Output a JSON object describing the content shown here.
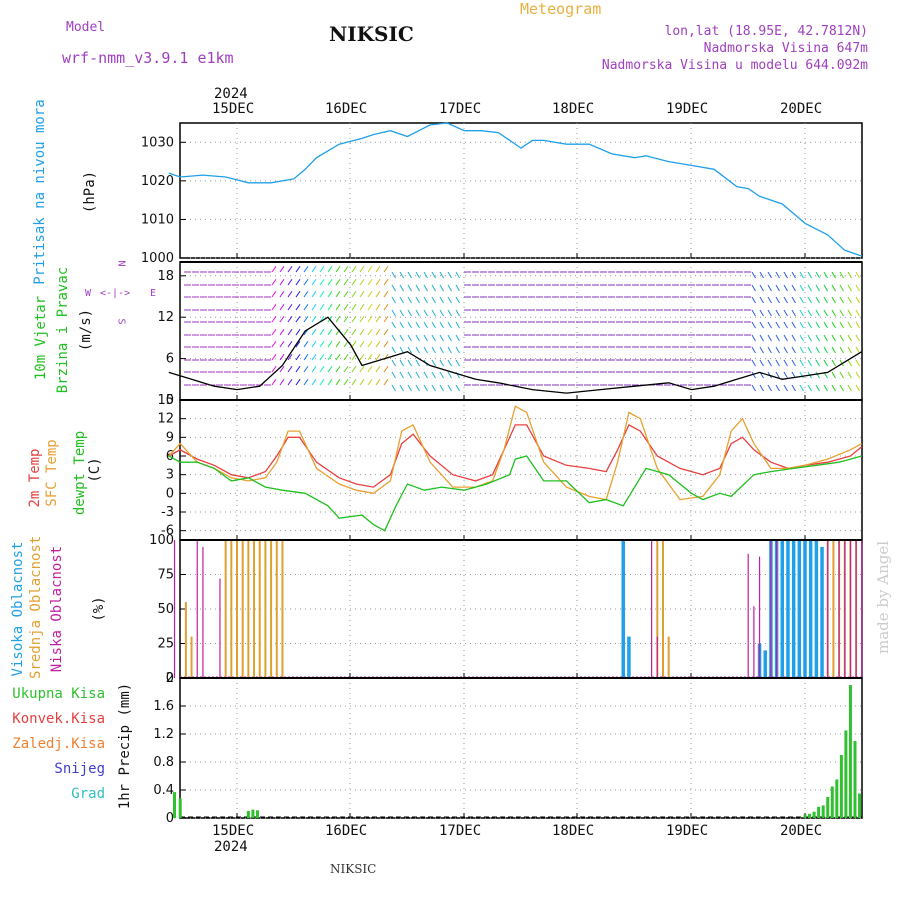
{
  "header": {
    "model_label": "Model",
    "model_name": "wrf-nmm_v3.9.1 e1km",
    "title": "NIKSIC",
    "meteogram": "Meteogram",
    "lonlat": "lon,lat (18.95E, 42.7812N)",
    "elevation": "Nadmorska Visina 647m",
    "model_elevation": "Nadmorska Visina u modelu 644.092m"
  },
  "year": "2024",
  "day_labels": [
    "15DEC",
    "16DEC",
    "17DEC",
    "18DEC",
    "19DEC",
    "20DEC"
  ],
  "footer": "NIKSIC",
  "made_by": "made by Angel",
  "colors": {
    "pressure": "#20a0e8",
    "temp2m": "#e84040",
    "sfc_temp": "#e8a030",
    "dewpoint": "#20c020",
    "cloud_high": "#20a0e8",
    "cloud_mid": "#e0a030",
    "cloud_low": "#c020a0",
    "precip": "#30c030"
  },
  "compass": {
    "n": "N",
    "s": "S",
    "e": "E",
    "w": "W"
  },
  "panels": {
    "pressure": {
      "label1": "Pritisak na nivou mora",
      "label2": "(hPa)"
    },
    "wind": {
      "label1": "10m Vjetar",
      "label2": "Brzina i Pravac",
      "label3": "(m/s)"
    },
    "temp": {
      "label1": "2m Temp",
      "label2": "SFC Temp",
      "label3": "dewpt Temp",
      "label4": "(C)"
    },
    "cloud": {
      "label1": "Visoka Oblacnost",
      "label2": "Srednja Oblacnost",
      "label3": "Niska Oblacnost",
      "label4": "(%)"
    },
    "precip": {
      "axis_label": "1hr Precip (mm)",
      "legend": [
        {
          "name": "Ukupna Kisa",
          "color": "#30c030"
        },
        {
          "name": "Konvek.Kisa",
          "color": "#e84040"
        },
        {
          "name": "Zaledj.Kisa",
          "color": "#f08030"
        },
        {
          "name": "Snijeg",
          "color": "#4040d0"
        },
        {
          "name": "Grad",
          "color": "#30c0c0"
        }
      ]
    }
  },
  "chart_data": [
    {
      "type": "line",
      "panel": "pressure",
      "ylabel": "(hPa)",
      "ylim": [
        1000,
        1035
      ],
      "yticks": [
        1000,
        1010,
        1020,
        1030
      ],
      "xlim": [
        -0.6,
        5.5
      ],
      "series": [
        {
          "name": "Pritisak na nivou mora",
          "x": [
            -0.6,
            -0.5,
            -0.3,
            -0.1,
            0.1,
            0.3,
            0.5,
            0.6,
            0.7,
            0.9,
            1.1,
            1.2,
            1.35,
            1.5,
            1.6,
            1.7,
            1.85,
            2.0,
            2.15,
            2.3,
            2.5,
            2.6,
            2.7,
            2.9,
            3.1,
            3.3,
            3.5,
            3.6,
            3.8,
            4.0,
            4.2,
            4.4,
            4.5,
            4.6,
            4.8,
            5.0,
            5.2,
            5.35,
            5.5
          ],
          "y": [
            1022,
            1021,
            1021.5,
            1021,
            1019.5,
            1019.5,
            1020.5,
            1023,
            1026,
            1029.5,
            1031,
            1032,
            1033,
            1031.5,
            1033,
            1034.5,
            1035,
            1033,
            1033,
            1032.5,
            1028.5,
            1030.5,
            1030.5,
            1029.5,
            1029.5,
            1027,
            1026,
            1026.5,
            1025,
            1024,
            1023,
            1018.5,
            1018,
            1016,
            1014,
            1009,
            1006,
            1002,
            1000.5
          ]
        }
      ]
    },
    {
      "type": "line",
      "panel": "wind",
      "ylabel": "(m/s)",
      "ylim": [
        0,
        20
      ],
      "yticks": [
        0,
        6,
        12,
        18
      ],
      "xlim": [
        -0.6,
        5.5
      ],
      "series": [
        {
          "name": "Brzina",
          "x": [
            -0.6,
            -0.4,
            -0.2,
            0.0,
            0.2,
            0.4,
            0.6,
            0.8,
            1.0,
            1.1,
            1.3,
            1.5,
            1.7,
            1.9,
            2.1,
            2.3,
            2.6,
            2.9,
            3.2,
            3.5,
            3.8,
            4.0,
            4.2,
            4.4,
            4.6,
            4.8,
            5.0,
            5.2,
            5.4,
            5.5
          ],
          "y": [
            4,
            3,
            2,
            1.5,
            2,
            5,
            10,
            12,
            8,
            5,
            6,
            7,
            5,
            4,
            3,
            2.5,
            1.5,
            1,
            1.5,
            2,
            2.5,
            1.5,
            2,
            3,
            4,
            3,
            3.5,
            4,
            6,
            7
          ]
        }
      ]
    },
    {
      "type": "line",
      "panel": "temp",
      "ylabel": "(C)",
      "ylim": [
        -7.5,
        15
      ],
      "yticks": [
        -6,
        -3,
        0,
        3,
        6,
        9,
        12,
        15
      ],
      "xlim": [
        -0.6,
        5.5
      ],
      "series": [
        {
          "name": "2m Temp",
          "x": [
            -0.6,
            -0.5,
            -0.35,
            -0.2,
            -0.05,
            0.1,
            0.25,
            0.35,
            0.45,
            0.55,
            0.7,
            0.9,
            1.05,
            1.2,
            1.35,
            1.45,
            1.55,
            1.7,
            1.9,
            2.1,
            2.25,
            2.35,
            2.45,
            2.55,
            2.7,
            2.9,
            3.1,
            3.25,
            3.35,
            3.45,
            3.55,
            3.7,
            3.9,
            4.1,
            4.25,
            4.35,
            4.45,
            4.55,
            4.7,
            4.85,
            5.0,
            5.2,
            5.4,
            5.5
          ],
          "y": [
            6,
            7,
            5.5,
            4.5,
            3,
            2.5,
            3.5,
            6,
            9,
            9,
            5,
            2.5,
            1.5,
            1,
            3,
            8,
            9.5,
            6,
            3,
            2,
            3,
            7,
            11,
            11,
            6,
            4.5,
            4,
            3.5,
            7,
            11,
            10,
            6,
            4,
            3,
            4,
            8,
            9,
            7,
            5,
            4,
            4.5,
            5,
            6,
            7.5
          ]
        },
        {
          "name": "SFC Temp",
          "x": [
            -0.6,
            -0.5,
            -0.35,
            -0.2,
            -0.05,
            0.1,
            0.25,
            0.35,
            0.45,
            0.55,
            0.7,
            0.9,
            1.05,
            1.2,
            1.35,
            1.45,
            1.55,
            1.7,
            1.9,
            2.1,
            2.25,
            2.35,
            2.45,
            2.55,
            2.7,
            2.9,
            3.1,
            3.25,
            3.35,
            3.45,
            3.55,
            3.7,
            3.9,
            4.1,
            4.25,
            4.35,
            4.45,
            4.55,
            4.7,
            4.85,
            5.0,
            5.2,
            5.4,
            5.5
          ],
          "y": [
            6,
            8,
            5,
            4,
            2.5,
            2,
            2.5,
            5,
            10,
            10,
            4,
            1.5,
            0.5,
            0,
            2,
            10,
            11,
            5,
            1,
            1,
            2,
            7,
            14,
            13,
            5,
            1,
            -0.5,
            -1,
            5,
            13,
            12,
            4,
            -1,
            -0.5,
            3,
            10,
            12,
            8,
            4,
            4,
            4.5,
            5.5,
            7,
            8
          ]
        },
        {
          "name": "dewpt Temp",
          "x": [
            -0.6,
            -0.5,
            -0.35,
            -0.2,
            -0.05,
            0.1,
            0.25,
            0.4,
            0.6,
            0.8,
            0.9,
            1.1,
            1.2,
            1.3,
            1.4,
            1.5,
            1.65,
            1.8,
            2.0,
            2.2,
            2.4,
            2.45,
            2.55,
            2.7,
            2.9,
            3.1,
            3.25,
            3.4,
            3.5,
            3.6,
            3.8,
            4.0,
            4.1,
            4.25,
            4.35,
            4.55,
            4.7,
            4.9,
            5.1,
            5.3,
            5.5
          ],
          "y": [
            6,
            5,
            5,
            4,
            2,
            2.5,
            1,
            0.5,
            0,
            -2,
            -4,
            -3.5,
            -5,
            -6,
            -2,
            1.5,
            0.5,
            1,
            0.5,
            1.5,
            3,
            5.5,
            6,
            2,
            2,
            -1.5,
            -1,
            -2,
            1,
            4,
            3,
            0,
            -1,
            0,
            -0.5,
            3,
            3.5,
            4,
            4.5,
            5,
            6
          ]
        }
      ]
    },
    {
      "type": "bar",
      "panel": "cloud",
      "ylabel": "(%)",
      "ylim": [
        0,
        100
      ],
      "yticks": [
        0,
        25,
        50,
        75,
        100
      ],
      "xlim": [
        -0.6,
        5.5
      ],
      "series": [
        {
          "name": "Visoka Oblacnost",
          "x": [
            3.4,
            3.45,
            4.6,
            4.65,
            4.7,
            4.75,
            4.8,
            4.85,
            4.9,
            4.95,
            5.0,
            5.05,
            5.1,
            5.15
          ],
          "y": [
            100,
            30,
            25,
            20,
            100,
            100,
            100,
            100,
            100,
            100,
            100,
            100,
            100,
            95
          ]
        },
        {
          "name": "Srednja Oblacnost",
          "x": [
            -0.45,
            -0.4,
            -0.1,
            -0.05,
            0.0,
            0.05,
            0.1,
            0.15,
            0.2,
            0.25,
            0.3,
            0.35,
            0.4,
            3.7,
            3.75,
            3.8,
            5.2,
            5.25,
            5.3,
            5.35,
            5.4,
            5.45
          ],
          "y": [
            55,
            30,
            100,
            100,
            100,
            100,
            100,
            100,
            100,
            100,
            100,
            100,
            100,
            100,
            100,
            30,
            100,
            100,
            100,
            100,
            100,
            100
          ]
        },
        {
          "name": "Niska Oblacnost",
          "x": [
            -0.55,
            -0.35,
            -0.3,
            -0.15,
            3.65,
            3.7,
            4.5,
            4.55,
            4.6,
            4.7,
            4.75,
            5.2,
            5.3,
            5.35,
            5.4,
            5.45,
            5.5
          ],
          "y": [
            100,
            100,
            95,
            72,
            100,
            30,
            90,
            52,
            88,
            100,
            100,
            100,
            100,
            100,
            100,
            100,
            100
          ]
        }
      ]
    },
    {
      "type": "bar",
      "panel": "precip",
      "ylabel": "1hr Precip (mm)",
      "ylim": [
        0,
        2
      ],
      "yticks": [
        0,
        0.4,
        0.8,
        1.2,
        1.6,
        2
      ],
      "xlim": [
        -0.6,
        5.5
      ],
      "series": [
        {
          "name": "Ukupna Kisa",
          "x": [
            -0.55,
            -0.5,
            0.1,
            0.14,
            0.18,
            5.0,
            5.04,
            5.08,
            5.12,
            5.16,
            5.2,
            5.24,
            5.28,
            5.32,
            5.36,
            5.4,
            5.44,
            5.48
          ],
          "y": [
            0.37,
            0.28,
            0.1,
            0.12,
            0.11,
            0.05,
            0.06,
            0.09,
            0.16,
            0.18,
            0.3,
            0.45,
            0.55,
            0.9,
            1.25,
            1.9,
            1.1,
            0.35
          ]
        }
      ]
    }
  ]
}
